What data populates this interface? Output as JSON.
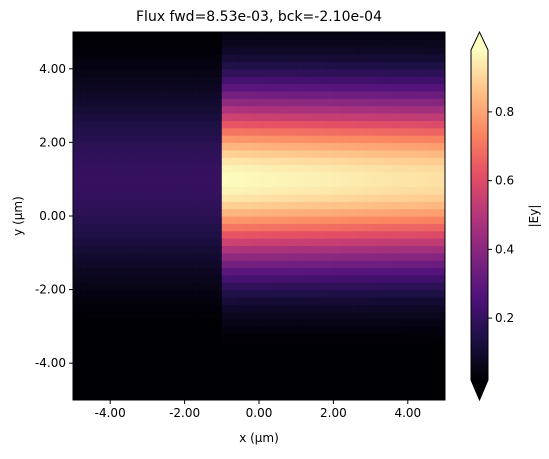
{
  "chart_data": {
    "type": "heatmap",
    "title": "Flux fwd=8.53e-03, bck=-2.10e-04",
    "xlabel": "x (µm)",
    "ylabel": "y (µm)",
    "xlim": [
      -5,
      5
    ],
    "ylim": [
      -5,
      5
    ],
    "xticks": [
      -4,
      -2,
      0,
      2,
      4
    ],
    "yticks": [
      -4,
      -2,
      0,
      2,
      4
    ],
    "x_tick_labels": [
      "-4.00",
      "-2.00",
      "0.00",
      "2.00",
      "4.00"
    ],
    "y_tick_labels": [
      "-4.00",
      "-2.00",
      "0.00",
      "2.00",
      "4.00"
    ],
    "colormap": "magma",
    "grid": false,
    "colorbar": {
      "label": "|Ey|",
      "range": [
        0.02,
        0.98
      ],
      "ticks": [
        0.2,
        0.4,
        0.6,
        0.8
      ],
      "tick_labels": [
        "0.2",
        "0.4",
        "0.6",
        "0.8"
      ],
      "extend": "both"
    },
    "field_model": {
      "center_y": 1.0,
      "left_region": {
        "x_range": [
          -5,
          -1
        ],
        "peak_value": 0.2,
        "y_sigma": 1.8
      },
      "right_region": {
        "x_range": [
          -1,
          5
        ],
        "peak_value": 0.98,
        "y_sigma": 1.6
      }
    }
  }
}
